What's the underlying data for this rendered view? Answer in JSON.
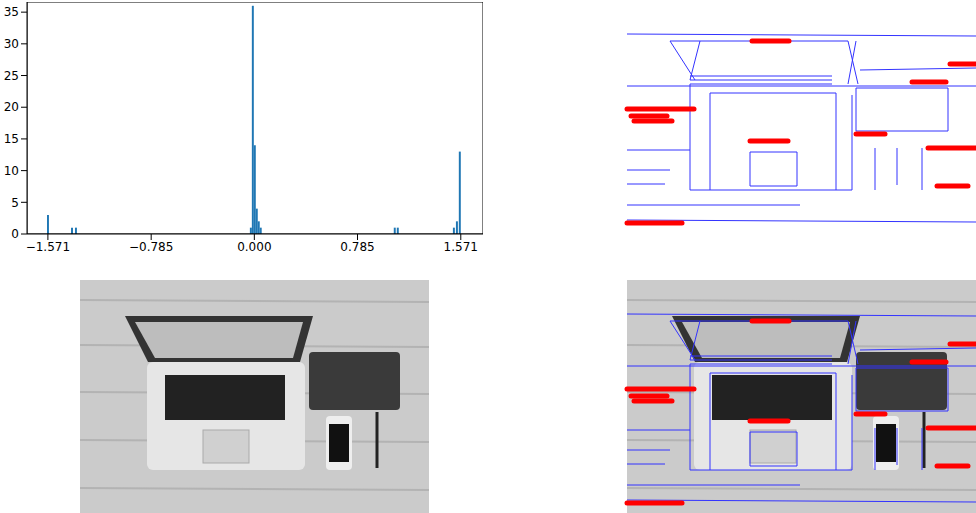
{
  "chart_data": {
    "type": "histogram",
    "bins": [
      -1.578,
      -1.563,
      -1.395,
      -1.38,
      -1.365,
      -1.35,
      -0.034,
      -0.019,
      -0.004,
      0.011,
      0.026,
      0.041,
      0.056,
      1.061,
      1.076,
      1.084,
      1.099,
      1.511,
      1.526,
      1.534,
      1.549,
      1.556,
      1.571
    ],
    "counts": [
      3,
      0,
      1,
      0,
      1,
      0,
      1,
      36,
      14,
      4,
      2,
      1,
      0,
      1,
      0,
      1,
      0,
      1,
      0,
      2,
      0,
      13
    ],
    "color": "#1f77b4",
    "xlim": [
      -1.73,
      1.74
    ],
    "ylim": [
      0,
      36.6
    ],
    "xticks": [
      {
        "value": -1.571,
        "label": "−1.571"
      },
      {
        "value": -0.785,
        "label": "−0.785"
      },
      {
        "value": 0,
        "label": "0.000"
      },
      0.785,
      1.571
    ],
    "yticks": [
      0,
      5,
      10,
      15,
      20,
      25,
      30,
      35
    ]
  }
}
